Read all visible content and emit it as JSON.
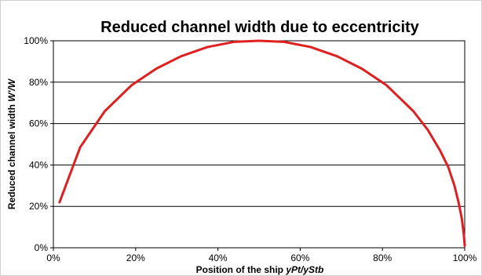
{
  "chart_data": {
    "type": "line",
    "title": "Reduced channel width due to eccentricity",
    "xlabel_prefix": "Position of the ship ",
    "xlabel_italic": "yPt/yStb",
    "ylabel_prefix": "Reduced channel width ",
    "ylabel_italic": "W'/W",
    "xlim": [
      0,
      1
    ],
    "ylim": [
      0,
      1
    ],
    "xticks": [
      0,
      0.2,
      0.4,
      0.6,
      0.8,
      1.0
    ],
    "yticks": [
      0,
      0.2,
      0.4,
      0.6,
      0.8,
      1.0
    ],
    "tick_format": "percent",
    "grid": "horizontal",
    "line_color": "#e02020",
    "series": [
      {
        "points": [
          [
            0.015,
            0.22
          ],
          [
            0.065,
            0.485
          ],
          [
            0.125,
            0.66
          ],
          [
            0.19,
            0.785
          ],
          [
            0.25,
            0.865
          ],
          [
            0.31,
            0.925
          ],
          [
            0.375,
            0.97
          ],
          [
            0.44,
            0.995
          ],
          [
            0.5,
            1.0
          ],
          [
            0.56,
            0.995
          ],
          [
            0.625,
            0.97
          ],
          [
            0.69,
            0.925
          ],
          [
            0.75,
            0.865
          ],
          [
            0.81,
            0.785
          ],
          [
            0.875,
            0.66
          ],
          [
            0.91,
            0.57
          ],
          [
            0.94,
            0.47
          ],
          [
            0.96,
            0.39
          ],
          [
            0.975,
            0.3
          ],
          [
            0.985,
            0.22
          ],
          [
            0.993,
            0.14
          ],
          [
            0.998,
            0.06
          ],
          [
            1.0,
            0.01
          ]
        ]
      }
    ]
  }
}
